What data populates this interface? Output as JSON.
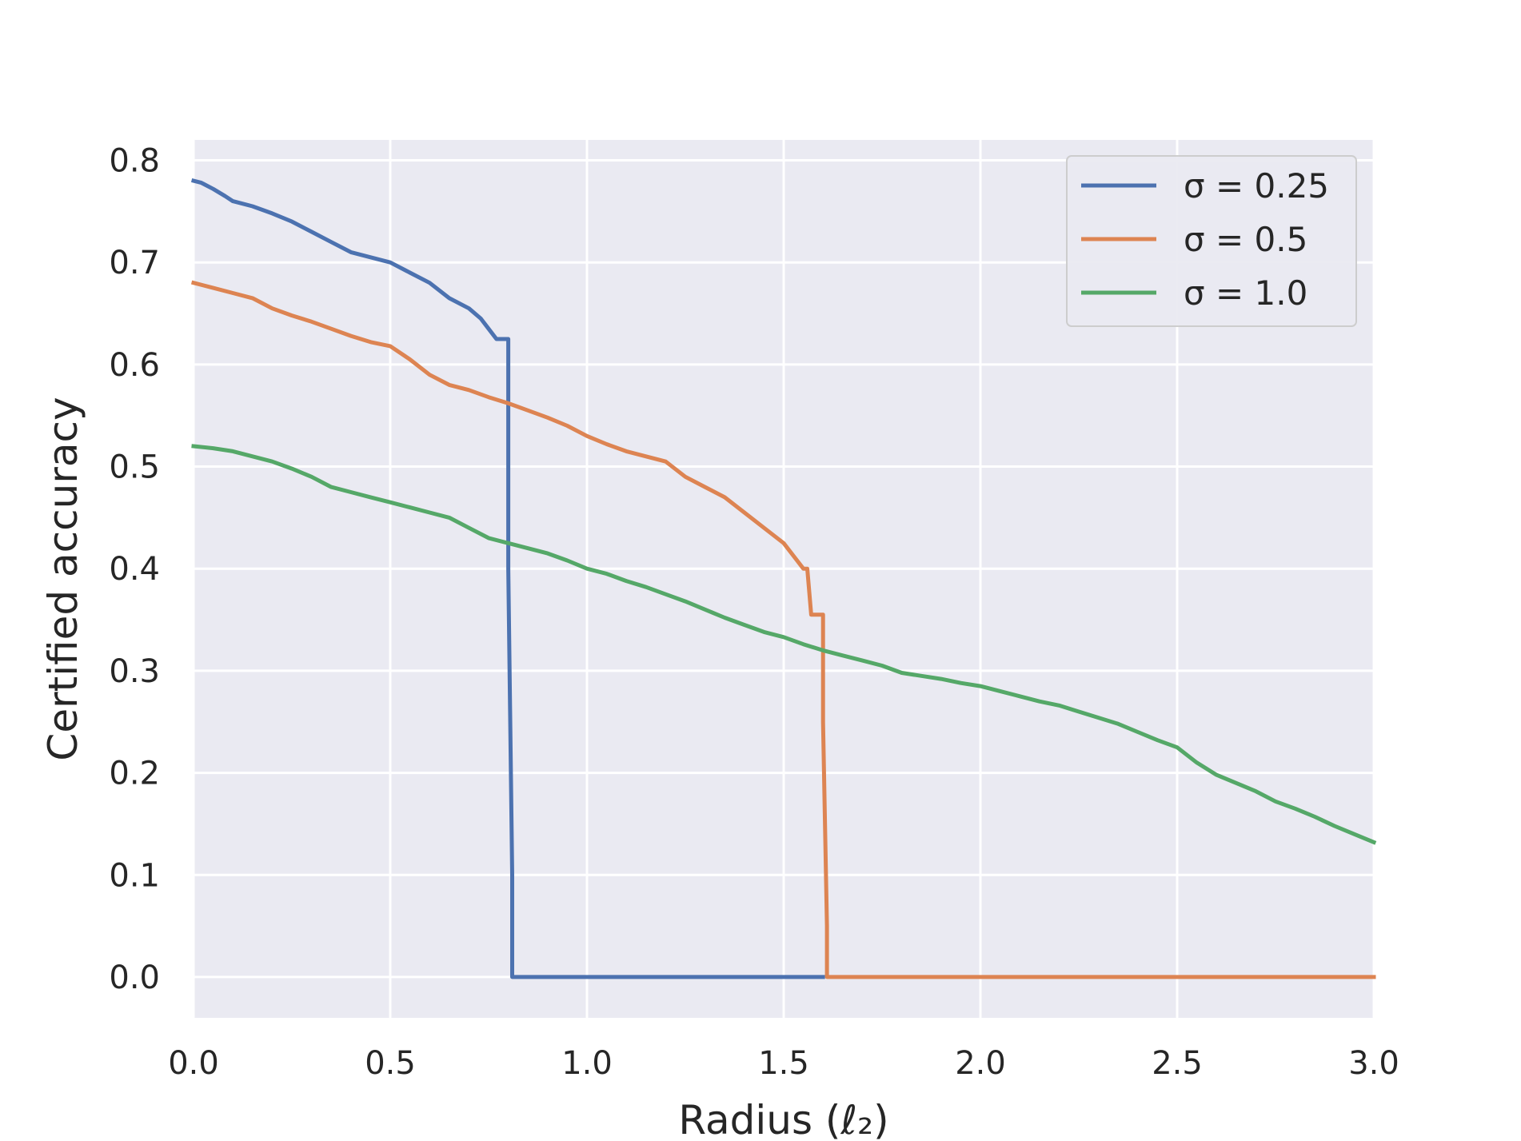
{
  "chart_data": {
    "type": "line",
    "xlabel": "Radius (ℓ₂)",
    "ylabel": "Certified accuracy",
    "xlim": [
      0.0,
      3.0
    ],
    "ylim": [
      -0.04,
      0.82
    ],
    "x_ticks": [
      "0.0",
      "0.5",
      "1.0",
      "1.5",
      "2.0",
      "2.5",
      "3.0"
    ],
    "y_ticks": [
      "0.0",
      "0.1",
      "0.2",
      "0.3",
      "0.4",
      "0.5",
      "0.6",
      "0.7",
      "0.8"
    ],
    "grid": true,
    "legend_position": "top-right",
    "series": [
      {
        "name": "σ =  0.25",
        "color": "#4c72b0",
        "x": [
          0.0,
          0.02,
          0.05,
          0.08,
          0.1,
          0.15,
          0.2,
          0.25,
          0.3,
          0.35,
          0.4,
          0.45,
          0.5,
          0.55,
          0.6,
          0.65,
          0.7,
          0.73,
          0.75,
          0.77,
          0.79,
          0.8,
          0.8,
          0.81,
          0.81,
          1.0,
          1.5,
          1.6
        ],
        "y": [
          0.78,
          0.778,
          0.772,
          0.765,
          0.76,
          0.755,
          0.748,
          0.74,
          0.73,
          0.72,
          0.71,
          0.705,
          0.7,
          0.69,
          0.68,
          0.665,
          0.655,
          0.645,
          0.635,
          0.625,
          0.625,
          0.625,
          0.4,
          0.1,
          0.0,
          0.0,
          0.0,
          0.0
        ]
      },
      {
        "name": "σ =  0.5",
        "color": "#dd8452",
        "x": [
          0.0,
          0.05,
          0.1,
          0.15,
          0.2,
          0.25,
          0.3,
          0.35,
          0.4,
          0.45,
          0.5,
          0.55,
          0.6,
          0.65,
          0.7,
          0.75,
          0.8,
          0.85,
          0.9,
          0.95,
          1.0,
          1.05,
          1.1,
          1.15,
          1.2,
          1.25,
          1.3,
          1.35,
          1.4,
          1.45,
          1.5,
          1.53,
          1.55,
          1.56,
          1.57,
          1.6,
          1.6,
          1.61,
          1.61,
          2.0,
          2.5,
          3.0
        ],
        "y": [
          0.68,
          0.675,
          0.67,
          0.665,
          0.655,
          0.648,
          0.642,
          0.635,
          0.628,
          0.622,
          0.618,
          0.605,
          0.59,
          0.58,
          0.575,
          0.568,
          0.562,
          0.555,
          0.548,
          0.54,
          0.53,
          0.522,
          0.515,
          0.51,
          0.505,
          0.49,
          0.48,
          0.47,
          0.455,
          0.44,
          0.425,
          0.41,
          0.4,
          0.4,
          0.355,
          0.355,
          0.25,
          0.05,
          0.0,
          0.0,
          0.0,
          0.0
        ]
      },
      {
        "name": "σ =  1.0",
        "color": "#55a868",
        "x": [
          0.0,
          0.05,
          0.1,
          0.15,
          0.2,
          0.25,
          0.3,
          0.35,
          0.4,
          0.45,
          0.5,
          0.55,
          0.6,
          0.65,
          0.7,
          0.75,
          0.8,
          0.85,
          0.9,
          0.95,
          1.0,
          1.05,
          1.1,
          1.15,
          1.2,
          1.25,
          1.3,
          1.35,
          1.4,
          1.45,
          1.5,
          1.55,
          1.6,
          1.65,
          1.7,
          1.75,
          1.8,
          1.85,
          1.9,
          1.95,
          2.0,
          2.05,
          2.1,
          2.15,
          2.2,
          2.25,
          2.3,
          2.35,
          2.4,
          2.45,
          2.5,
          2.55,
          2.6,
          2.65,
          2.7,
          2.75,
          2.8,
          2.85,
          2.9,
          2.95,
          3.0
        ],
        "y": [
          0.52,
          0.518,
          0.515,
          0.51,
          0.505,
          0.498,
          0.49,
          0.48,
          0.475,
          0.47,
          0.465,
          0.46,
          0.455,
          0.45,
          0.44,
          0.43,
          0.425,
          0.42,
          0.415,
          0.408,
          0.4,
          0.395,
          0.388,
          0.382,
          0.375,
          0.368,
          0.36,
          0.352,
          0.345,
          0.338,
          0.333,
          0.326,
          0.32,
          0.315,
          0.31,
          0.305,
          0.298,
          0.295,
          0.292,
          0.288,
          0.285,
          0.28,
          0.275,
          0.27,
          0.266,
          0.26,
          0.254,
          0.248,
          0.24,
          0.232,
          0.225,
          0.21,
          0.198,
          0.19,
          0.182,
          0.172,
          0.165,
          0.157,
          0.148,
          0.14,
          0.132
        ]
      }
    ]
  }
}
